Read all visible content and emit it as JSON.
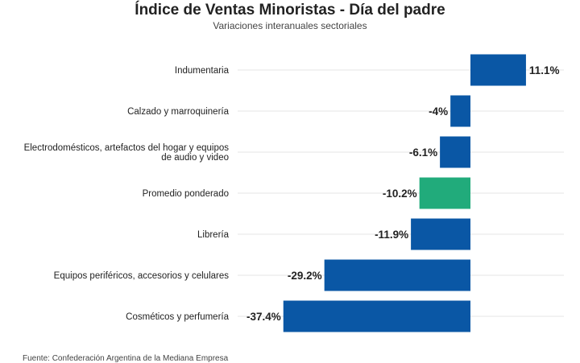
{
  "chart_data": {
    "type": "bar",
    "orientation": "horizontal",
    "title": "Índice de Ventas Minoristas - Día del padre",
    "subtitle": "Variaciones interanuales sectoriales",
    "source": "Fuente: Confederación Argentina de la Mediana Empresa",
    "categories": [
      [
        "Indumentaria"
      ],
      [
        "Calzado y marroquinería"
      ],
      [
        "Electrodomésticos, artefactos del hogar y equipos",
        "de audio y video"
      ],
      [
        "Promedio ponderado"
      ],
      [
        "Librería"
      ],
      [
        "Equipos periféricos, accesorios y celulares"
      ],
      [
        "Cosméticos y perfumería"
      ]
    ],
    "values": [
      11.1,
      -4,
      -6.1,
      -10.2,
      -11.9,
      -29.2,
      -37.4
    ],
    "value_labels": [
      "11.1%",
      "-4%",
      "-6.1%",
      "-10.2%",
      "-11.9%",
      "-29.2%",
      "-37.4%"
    ],
    "colors": [
      "#0a57a5",
      "#0a57a5",
      "#0a57a5",
      "#21ab7b",
      "#0a57a5",
      "#0a57a5",
      "#0a57a5"
    ],
    "xlim": [
      -37.4,
      11.1
    ],
    "grid": "horizontal"
  }
}
